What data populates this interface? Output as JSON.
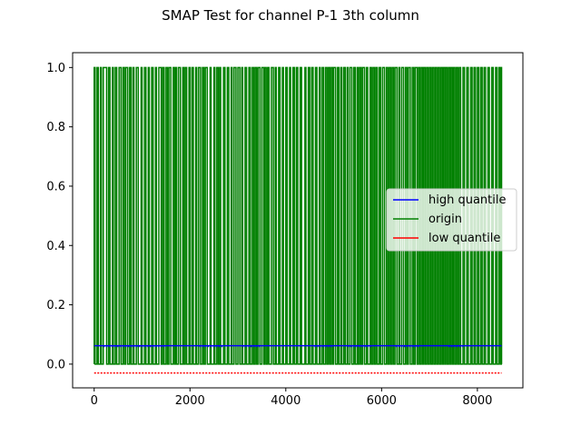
{
  "chart_data": {
    "type": "line",
    "title": "SMAP Test for channel P-1 3th column",
    "xlabel": "",
    "ylabel": "",
    "xlim": [
      -450,
      8950
    ],
    "ylim": [
      -0.08,
      1.05
    ],
    "x_ticks": [
      0,
      2000,
      4000,
      6000,
      8000
    ],
    "x_tick_labels": [
      "0",
      "2000",
      "4000",
      "6000",
      "8000"
    ],
    "y_ticks": [
      0.0,
      0.2,
      0.4,
      0.6,
      0.8,
      1.0
    ],
    "y_tick_labels": [
      "0.0",
      "0.2",
      "0.4",
      "0.6",
      "0.8",
      "1.0"
    ],
    "grid": false,
    "legend_position": "center-right",
    "series": [
      {
        "name": "high quantile",
        "color": "#0000ff",
        "description_values": "approximately constant",
        "x": [
          0,
          8505
        ],
        "y": [
          0.062,
          0.062
        ],
        "dense_intervals": [
          [
            200,
            1500
          ],
          [
            2200,
            2700
          ],
          [
            3100,
            3500
          ],
          [
            4600,
            5000
          ],
          [
            5300,
            5800
          ],
          [
            6300,
            6800
          ],
          [
            7400,
            7700
          ]
        ],
        "dense_value": 0.06
      },
      {
        "name": "origin",
        "color": "#008000",
        "binary_values": [
          0,
          1
        ],
        "x_range": [
          0,
          8505
        ],
        "high_intervals": [
          [
            0,
            20
          ],
          [
            60,
            85
          ],
          [
            130,
            150
          ],
          [
            190,
            260
          ],
          [
            300,
            330
          ],
          [
            380,
            400
          ],
          [
            440,
            470
          ],
          [
            520,
            560
          ],
          [
            600,
            630
          ],
          [
            660,
            700
          ],
          [
            740,
            770
          ],
          [
            810,
            830
          ],
          [
            880,
            920
          ],
          [
            980,
            1000
          ],
          [
            1050,
            1080
          ],
          [
            1130,
            1150
          ],
          [
            1200,
            1230
          ],
          [
            1280,
            1300
          ],
          [
            1350,
            1400
          ],
          [
            1430,
            1460
          ],
          [
            1500,
            1530
          ],
          [
            1560,
            1600
          ],
          [
            1650,
            1680
          ],
          [
            1700,
            1720
          ],
          [
            1760,
            1800
          ],
          [
            1850,
            1870
          ],
          [
            1900,
            1930
          ],
          [
            1980,
            2000
          ],
          [
            2040,
            2070
          ],
          [
            2120,
            2140
          ],
          [
            2180,
            2220
          ],
          [
            2260,
            2290
          ],
          [
            2320,
            2360
          ],
          [
            2420,
            2440
          ],
          [
            2500,
            2520
          ],
          [
            2560,
            2590
          ],
          [
            2620,
            2640
          ],
          [
            2700,
            2730
          ],
          [
            2780,
            2810
          ],
          [
            2860,
            2880
          ],
          [
            2920,
            2960
          ],
          [
            3000,
            3040
          ],
          [
            3080,
            3100
          ],
          [
            3150,
            3180
          ],
          [
            3230,
            3260
          ],
          [
            3300,
            3330
          ],
          [
            3360,
            3390
          ],
          [
            3420,
            3460
          ],
          [
            3500,
            3540
          ],
          [
            3560,
            3590
          ],
          [
            3620,
            3650
          ],
          [
            3700,
            3740
          ],
          [
            3780,
            3800
          ],
          [
            3850,
            3880
          ],
          [
            3930,
            3950
          ],
          [
            4000,
            4030
          ],
          [
            4080,
            4100
          ],
          [
            4150,
            4180
          ],
          [
            4220,
            4250
          ],
          [
            4300,
            4330
          ],
          [
            4400,
            4420
          ],
          [
            4470,
            4500
          ],
          [
            4540,
            4570
          ],
          [
            4620,
            4650
          ],
          [
            4700,
            4720
          ],
          [
            4760,
            4790
          ],
          [
            4830,
            4860
          ],
          [
            4890,
            4920
          ],
          [
            4950,
            4980
          ],
          [
            5000,
            5040
          ],
          [
            5080,
            5110
          ],
          [
            5150,
            5170
          ],
          [
            5210,
            5240
          ],
          [
            5280,
            5300
          ],
          [
            5340,
            5380
          ],
          [
            5420,
            5450
          ],
          [
            5490,
            5510
          ],
          [
            5540,
            5570
          ],
          [
            5600,
            5640
          ],
          [
            5680,
            5710
          ],
          [
            5760,
            5790
          ],
          [
            5820,
            5850
          ],
          [
            5880,
            5910
          ],
          [
            5950,
            5980
          ],
          [
            6020,
            6060
          ],
          [
            6100,
            6130
          ],
          [
            6160,
            6190
          ],
          [
            6220,
            6250
          ],
          [
            6280,
            6320
          ],
          [
            6360,
            6380
          ],
          [
            6420,
            6460
          ],
          [
            6500,
            6530
          ],
          [
            6560,
            6600
          ],
          [
            6640,
            6670
          ],
          [
            6700,
            6740
          ],
          [
            6770,
            6800
          ],
          [
            6830,
            6860
          ],
          [
            6880,
            6910
          ],
          [
            6940,
            6970
          ],
          [
            7000,
            7030
          ],
          [
            7060,
            7090
          ],
          [
            7120,
            7150
          ],
          [
            7180,
            7210
          ],
          [
            7240,
            7270
          ],
          [
            7290,
            7320
          ],
          [
            7340,
            7370
          ],
          [
            7400,
            7430
          ],
          [
            7450,
            7480
          ],
          [
            7500,
            7530
          ],
          [
            7560,
            7590
          ],
          [
            7620,
            7650
          ],
          [
            7700,
            7730
          ],
          [
            7780,
            7810
          ],
          [
            7860,
            7890
          ],
          [
            7930,
            7960
          ],
          [
            8000,
            8030
          ],
          [
            8070,
            8100
          ],
          [
            8140,
            8170
          ],
          [
            8220,
            8250
          ],
          [
            8300,
            8330
          ],
          [
            8380,
            8410
          ],
          [
            8450,
            8480
          ],
          [
            8500,
            8505
          ]
        ]
      },
      {
        "name": "low quantile",
        "color": "#ff0000",
        "description_values": "approximately constant",
        "x": [
          0,
          8505
        ],
        "y": [
          -0.03,
          -0.03
        ]
      }
    ],
    "legend": {
      "items": [
        "high quantile",
        "origin",
        "low quantile"
      ]
    }
  }
}
